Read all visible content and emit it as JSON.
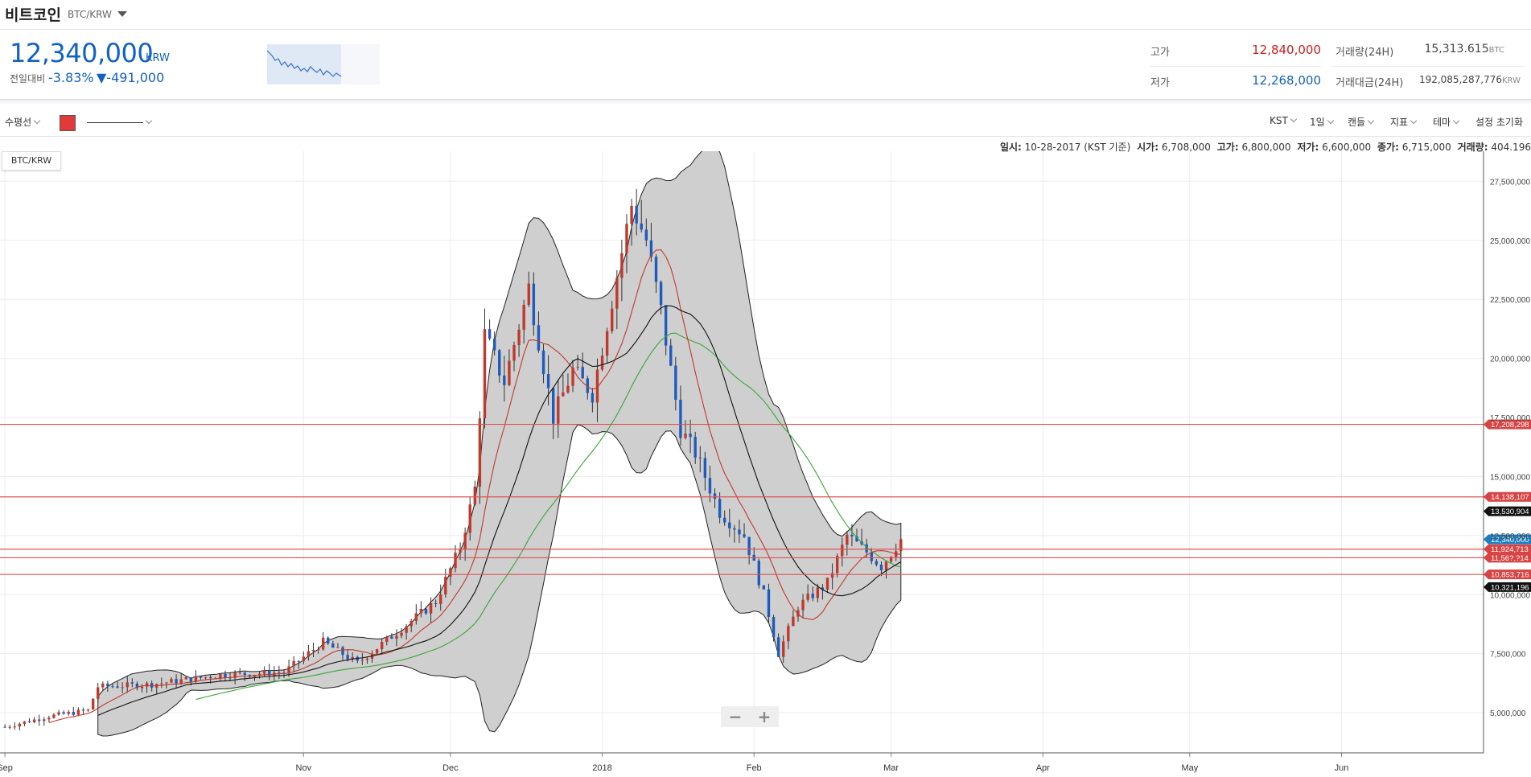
{
  "header": {
    "title": "비트코인",
    "pair": "BTC/KRW"
  },
  "ticker": {
    "price": "12,340,000",
    "unit": "KRW",
    "change_label": "전일대비",
    "change_pct": "-3.83%",
    "change_amt": "▼-491,000",
    "high_label": "고가",
    "high": "12,840,000",
    "low_label": "저가",
    "low": "12,268,000",
    "volume_label": "거래량(24H)",
    "volume": "15,313.615",
    "volume_unit": "BTC",
    "value_label": "거래대금(24H)",
    "value": "192,085,287,776",
    "value_unit": "KRW"
  },
  "toolbar": {
    "drawing_tool": "수평선",
    "timezone": "KST",
    "interval": "1일",
    "candle": "캔들",
    "indicators": "지표",
    "theme": "테마",
    "reset": "설정 초기화"
  },
  "info": {
    "date_label": "일시:",
    "date": "10-28-2017 (KST 기준)",
    "open_label": "시가:",
    "open": "6,708,000",
    "high_label": "고가:",
    "high": "6,800,000",
    "low_label": "저가:",
    "low": "6,600,000",
    "close_label": "종가:",
    "close": "6,715,000",
    "vol_label": "거래량:",
    "vol": "404.196"
  },
  "chart_tag": "BTC/KRW",
  "zoom": {
    "minus": "−",
    "plus": "+"
  },
  "colors": {
    "up": "#c0392b",
    "down": "#1e5bbf",
    "accent": "#1261c4",
    "hline": "#e05050"
  },
  "chart_data": {
    "type": "candlestick",
    "y_ticks": [
      "5,000,000",
      "7,500,000",
      "10,000,000",
      "12,500,000",
      "15,000,000",
      "17,500,000",
      "20,000,000",
      "22,500,000",
      "25,000,000",
      "27,500,000"
    ],
    "y_tick_values": [
      5000000,
      7500000,
      10000000,
      12500000,
      15000000,
      17500000,
      20000000,
      22500000,
      25000000,
      27500000
    ],
    "ylim": [
      3300000,
      28500000
    ],
    "x_ticks": [
      "Sep",
      "Nov",
      "Dec",
      "2018",
      "Feb",
      "Mar",
      "Apr",
      "May",
      "Jun"
    ],
    "x_tick_dates": [
      "2017-09-01",
      "2017-11-01",
      "2017-12-01",
      "2018-01-01",
      "2018-02-01",
      "2018-03-01",
      "2018-04-01",
      "2018-05-01",
      "2018-06-01"
    ],
    "xlim": [
      "2017-08-31",
      "2018-06-30"
    ],
    "horizontal_lines": [
      {
        "value": 17208298,
        "label": "17,208,298"
      },
      {
        "value": 14138107,
        "label": "14,138,107"
      },
      {
        "value": 11924713,
        "label": "11,924,713"
      },
      {
        "value": 11561000,
        "label": "11,56?,?14"
      },
      {
        "value": 10853716,
        "label": "10,853,716"
      }
    ],
    "price_labels": [
      {
        "value": 13530904,
        "label": "13,530,904",
        "color": "#111111"
      },
      {
        "value": 12340000,
        "label": "12,340,000",
        "color": "#1a7fc4"
      },
      {
        "value": 10321196,
        "label": "10,321,196",
        "color": "#111111"
      }
    ],
    "close_keypoints": [
      [
        "2017-09-01",
        4400000
      ],
      [
        "2017-09-10",
        4850000
      ],
      [
        "2017-09-18",
        5100000
      ],
      [
        "2017-09-20",
        6100000
      ],
      [
        "2017-10-01",
        6200000
      ],
      [
        "2017-10-15",
        6600000
      ],
      [
        "2017-10-28",
        6715000
      ],
      [
        "2017-11-05",
        8000000
      ],
      [
        "2017-11-12",
        7100000
      ],
      [
        "2017-11-20",
        8400000
      ],
      [
        "2017-11-28",
        9700000
      ],
      [
        "2017-12-03",
        12000000
      ],
      [
        "2017-12-06",
        14500000
      ],
      [
        "2017-12-08",
        21000000
      ],
      [
        "2017-12-12",
        19000000
      ],
      [
        "2017-12-17",
        23000000
      ],
      [
        "2017-12-22",
        17500000
      ],
      [
        "2017-12-26",
        19500000
      ],
      [
        "2017-12-30",
        18500000
      ],
      [
        "2018-01-05",
        24500000
      ],
      [
        "2018-01-07",
        26500000
      ],
      [
        "2018-01-10",
        25000000
      ],
      [
        "2018-01-13",
        22000000
      ],
      [
        "2018-01-17",
        17000000
      ],
      [
        "2018-01-20",
        16000000
      ],
      [
        "2018-01-25",
        13500000
      ],
      [
        "2018-01-30",
        12500000
      ],
      [
        "2018-02-03",
        10000000
      ],
      [
        "2018-02-06",
        7500000
      ],
      [
        "2018-02-10",
        9500000
      ],
      [
        "2018-02-16",
        10500000
      ],
      [
        "2018-02-20",
        12500000
      ],
      [
        "2018-02-24",
        11800000
      ],
      [
        "2018-02-27",
        11200000
      ],
      [
        "2018-03-03",
        12340000
      ]
    ]
  }
}
